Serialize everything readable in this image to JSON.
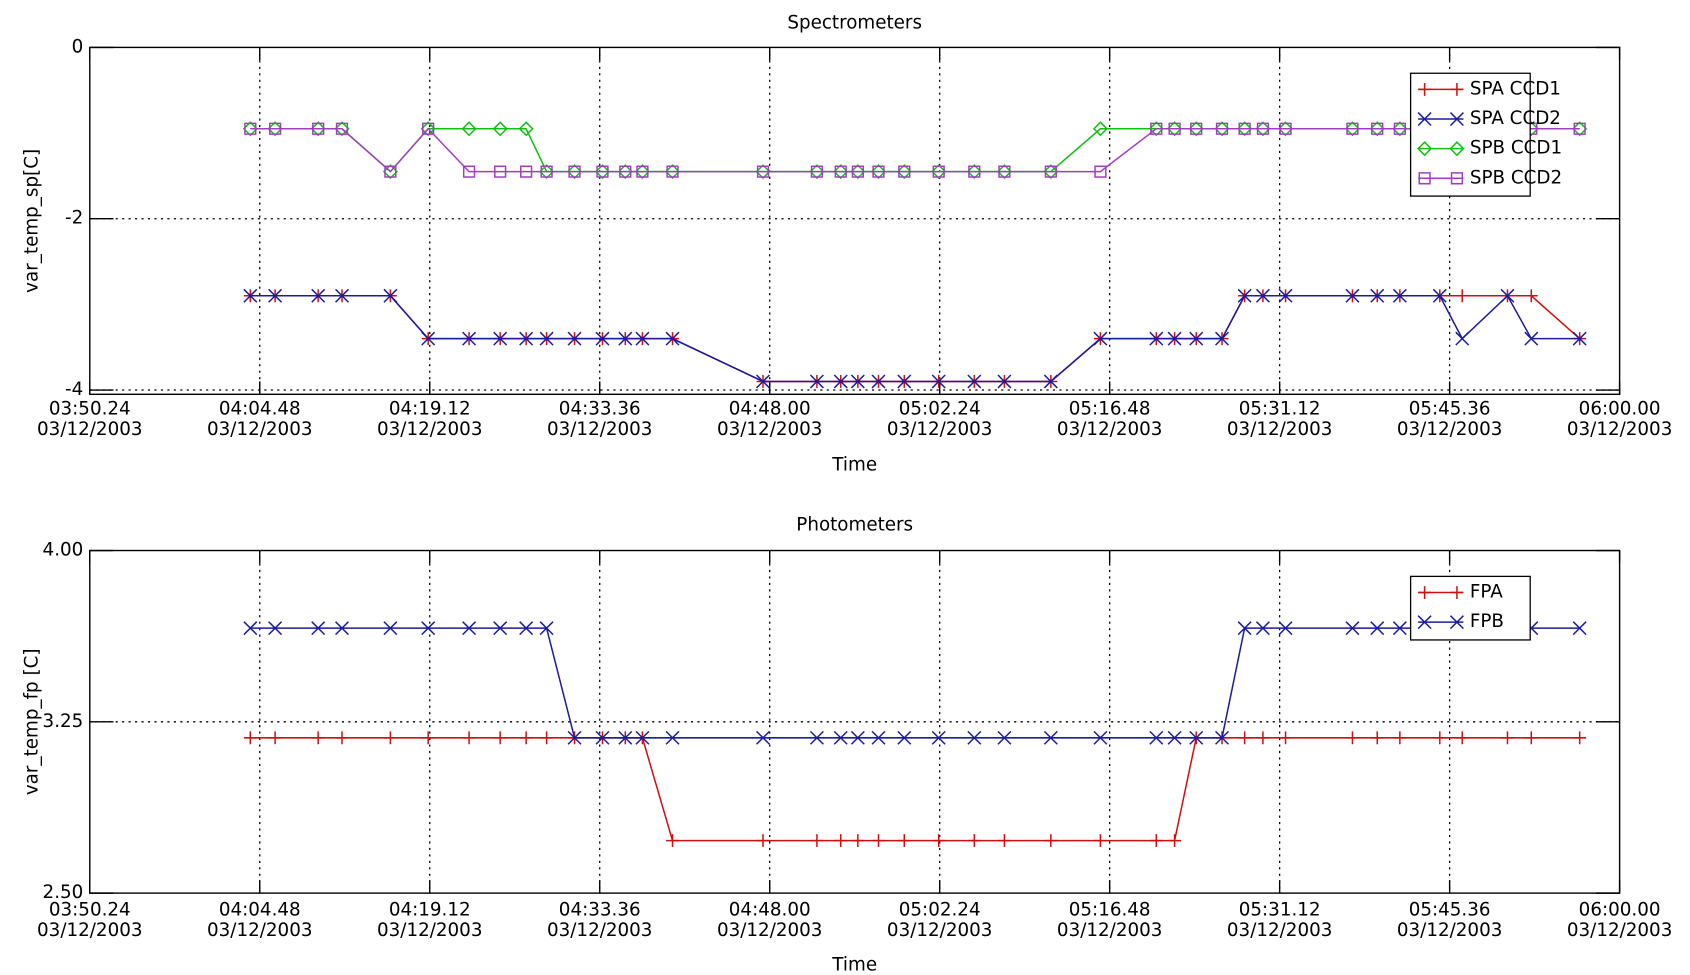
{
  "chart_data": [
    {
      "type": "line",
      "title": "Spectrometers",
      "xlabel": "Time",
      "ylabel": "var_temp_sp[C]",
      "x": [
        "04:04:00",
        "04:06:06",
        "04:09:45",
        "04:11:46",
        "04:15:52",
        "04:19:04",
        "04:22:32",
        "04:25:10",
        "04:27:22",
        "04:29:06",
        "04:31:28",
        "04:33:50",
        "04:35:46",
        "04:37:13",
        "04:39:46",
        "04:47:26",
        "04:52:00",
        "04:54:01",
        "04:55:28",
        "04:57:13",
        "04:59:24",
        "05:02:19",
        "05:05:20",
        "05:07:53",
        "05:11:49",
        "05:16:01",
        "05:20:45",
        "05:22:18",
        "05:24:08",
        "05:26:19",
        "05:28:14",
        "05:29:47",
        "05:31:42",
        "05:37:22",
        "05:39:28",
        "05:41:23",
        "05:44:46",
        "05:46:40",
        "05:50:30",
        "05:52:31",
        "05:56:37"
      ],
      "series": [
        {
          "name": "SPA CCD1",
          "color": "#d01010",
          "marker": "plus",
          "values": [
            -2.9,
            -2.9,
            -2.9,
            -2.9,
            -2.9,
            -3.4,
            -3.4,
            -3.4,
            -3.4,
            -3.4,
            -3.4,
            -3.4,
            -3.4,
            -3.4,
            -3.4,
            -3.9,
            -3.9,
            -3.9,
            -3.9,
            -3.9,
            -3.9,
            -3.9,
            -3.9,
            -3.9,
            -3.9,
            -3.4,
            -3.4,
            -3.4,
            -3.4,
            -3.4,
            -2.9,
            -2.9,
            -2.9,
            -2.9,
            -2.9,
            -2.9,
            -2.9,
            -2.9,
            -2.9,
            -2.9,
            -3.4
          ]
        },
        {
          "name": "SPA CCD2",
          "color": "#1c1ca0",
          "marker": "cross",
          "values": [
            -2.9,
            -2.9,
            -2.9,
            -2.9,
            -2.9,
            -3.4,
            -3.4,
            -3.4,
            -3.4,
            -3.4,
            -3.4,
            -3.4,
            -3.4,
            -3.4,
            -3.4,
            -3.9,
            -3.9,
            -3.9,
            -3.9,
            -3.9,
            -3.9,
            -3.9,
            -3.9,
            -3.9,
            -3.9,
            -3.4,
            -3.4,
            -3.4,
            -3.4,
            -3.4,
            -2.9,
            -2.9,
            -2.9,
            -2.9,
            -2.9,
            -2.9,
            -2.9,
            -3.4,
            -2.9,
            -3.4,
            -3.4
          ]
        },
        {
          "name": "SPB CCD1",
          "color": "#10c010",
          "marker": "diamond",
          "values": [
            -0.95,
            -0.95,
            -0.95,
            -0.95,
            -1.45,
            -0.95,
            -0.95,
            -0.95,
            -0.95,
            -1.45,
            -1.45,
            -1.45,
            -1.45,
            -1.45,
            -1.45,
            -1.45,
            -1.45,
            -1.45,
            -1.45,
            -1.45,
            -1.45,
            -1.45,
            -1.45,
            -1.45,
            -1.45,
            -0.95,
            -0.95,
            -0.95,
            -0.95,
            -0.95,
            -0.95,
            -0.95,
            -0.95,
            -0.95,
            -0.95,
            -0.95,
            -0.95,
            -0.95,
            -0.95,
            -0.95,
            -0.95
          ]
        },
        {
          "name": "SPB CCD2",
          "color": "#a040c0",
          "marker": "square",
          "values": [
            -0.95,
            -0.95,
            -0.95,
            -0.95,
            -1.45,
            -0.95,
            -1.45,
            -1.45,
            -1.45,
            -1.45,
            -1.45,
            -1.45,
            -1.45,
            -1.45,
            -1.45,
            -1.45,
            -1.45,
            -1.45,
            -1.45,
            -1.45,
            -1.45,
            -1.45,
            -1.45,
            -1.45,
            -1.45,
            -1.45,
            -0.95,
            -0.95,
            -0.95,
            -0.95,
            -0.95,
            -0.95,
            -0.95,
            -0.95,
            -0.95,
            -0.95,
            -0.95,
            -0.95,
            -0.95,
            -0.95,
            -0.95
          ]
        }
      ],
      "xlim": [
        "03:50:24",
        "06:00:00"
      ],
      "xticks": [
        {
          "value": "03:50:24",
          "label": "03:50.24",
          "date": "03/12/2003"
        },
        {
          "value": "04:04:48",
          "label": "04:04.48",
          "date": "03/12/2003"
        },
        {
          "value": "04:19:12",
          "label": "04:19.12",
          "date": "03/12/2003"
        },
        {
          "value": "04:33:36",
          "label": "04:33.36",
          "date": "03/12/2003"
        },
        {
          "value": "04:48:00",
          "label": "04:48.00",
          "date": "03/12/2003"
        },
        {
          "value": "05:02:24",
          "label": "05:02.24",
          "date": "03/12/2003"
        },
        {
          "value": "05:16:48",
          "label": "05:16.48",
          "date": "03/12/2003"
        },
        {
          "value": "05:31:12",
          "label": "05:31.12",
          "date": "03/12/2003"
        },
        {
          "value": "05:45:36",
          "label": "05:45.36",
          "date": "03/12/2003"
        },
        {
          "value": "06:00:00",
          "label": "06:00.00",
          "date": "03/12/2003"
        }
      ],
      "ylim": [
        -4.05,
        0
      ],
      "yticks": [
        0,
        -2,
        -4
      ],
      "grid": true,
      "legend": "upper right"
    },
    {
      "type": "line",
      "title": "Photometers",
      "xlabel": "Time",
      "ylabel": "var_temp_fp [C]",
      "x": [
        "04:04:00",
        "04:06:06",
        "04:09:45",
        "04:11:46",
        "04:15:52",
        "04:19:04",
        "04:22:32",
        "04:25:10",
        "04:27:22",
        "04:29:06",
        "04:31:28",
        "04:33:50",
        "04:35:46",
        "04:37:13",
        "04:39:46",
        "04:47:26",
        "04:52:00",
        "04:54:01",
        "04:55:28",
        "04:57:13",
        "04:59:24",
        "05:02:19",
        "05:05:20",
        "05:07:53",
        "05:11:49",
        "05:16:01",
        "05:20:45",
        "05:22:18",
        "05:24:08",
        "05:26:19",
        "05:28:14",
        "05:29:47",
        "05:31:42",
        "05:37:22",
        "05:39:28",
        "05:41:23",
        "05:44:46",
        "05:46:40",
        "05:50:30",
        "05:52:31",
        "05:56:37"
      ],
      "series": [
        {
          "name": "FPA",
          "color": "#d01010",
          "marker": "plus",
          "values": [
            3.18,
            3.18,
            3.18,
            3.18,
            3.18,
            3.18,
            3.18,
            3.18,
            3.18,
            3.18,
            3.18,
            3.18,
            3.18,
            3.18,
            2.73,
            2.73,
            2.73,
            2.73,
            2.73,
            2.73,
            2.73,
            2.73,
            2.73,
            2.73,
            2.73,
            2.73,
            2.73,
            2.73,
            3.18,
            3.18,
            3.18,
            3.18,
            3.18,
            3.18,
            3.18,
            3.18,
            3.18,
            3.18,
            3.18,
            3.18,
            3.18
          ]
        },
        {
          "name": "FPB",
          "color": "#1c1ca0",
          "marker": "cross",
          "values": [
            3.66,
            3.66,
            3.66,
            3.66,
            3.66,
            3.66,
            3.66,
            3.66,
            3.66,
            3.66,
            3.18,
            3.18,
            3.18,
            3.18,
            3.18,
            3.18,
            3.18,
            3.18,
            3.18,
            3.18,
            3.18,
            3.18,
            3.18,
            3.18,
            3.18,
            3.18,
            3.18,
            3.18,
            3.18,
            3.18,
            3.66,
            3.66,
            3.66,
            3.66,
            3.66,
            3.66,
            3.66,
            3.66,
            3.66,
            3.66,
            3.66
          ]
        }
      ],
      "xlim": [
        "03:50:24",
        "06:00:00"
      ],
      "xticks": [
        {
          "value": "03:50:24",
          "label": "03:50.24",
          "date": "03/12/2003"
        },
        {
          "value": "04:04:48",
          "label": "04:04.48",
          "date": "03/12/2003"
        },
        {
          "value": "04:19:12",
          "label": "04:19.12",
          "date": "03/12/2003"
        },
        {
          "value": "04:33:36",
          "label": "04:33.36",
          "date": "03/12/2003"
        },
        {
          "value": "04:48:00",
          "label": "04:48.00",
          "date": "03/12/2003"
        },
        {
          "value": "05:02:24",
          "label": "05:02.24",
          "date": "03/12/2003"
        },
        {
          "value": "05:16:48",
          "label": "05:16.48",
          "date": "03/12/2003"
        },
        {
          "value": "05:31:12",
          "label": "05:31.12",
          "date": "03/12/2003"
        },
        {
          "value": "05:45:36",
          "label": "05:45.36",
          "date": "03/12/2003"
        },
        {
          "value": "06:00:00",
          "label": "06:00.00",
          "date": "03/12/2003"
        }
      ],
      "ylim": [
        2.5,
        4.0
      ],
      "yticks": [
        {
          "value": 4.0,
          "label": "4.00"
        },
        {
          "value": 3.25,
          "label": "3.25"
        },
        {
          "value": 2.5,
          "label": "2.50"
        }
      ],
      "grid": true,
      "legend": "upper right"
    }
  ]
}
